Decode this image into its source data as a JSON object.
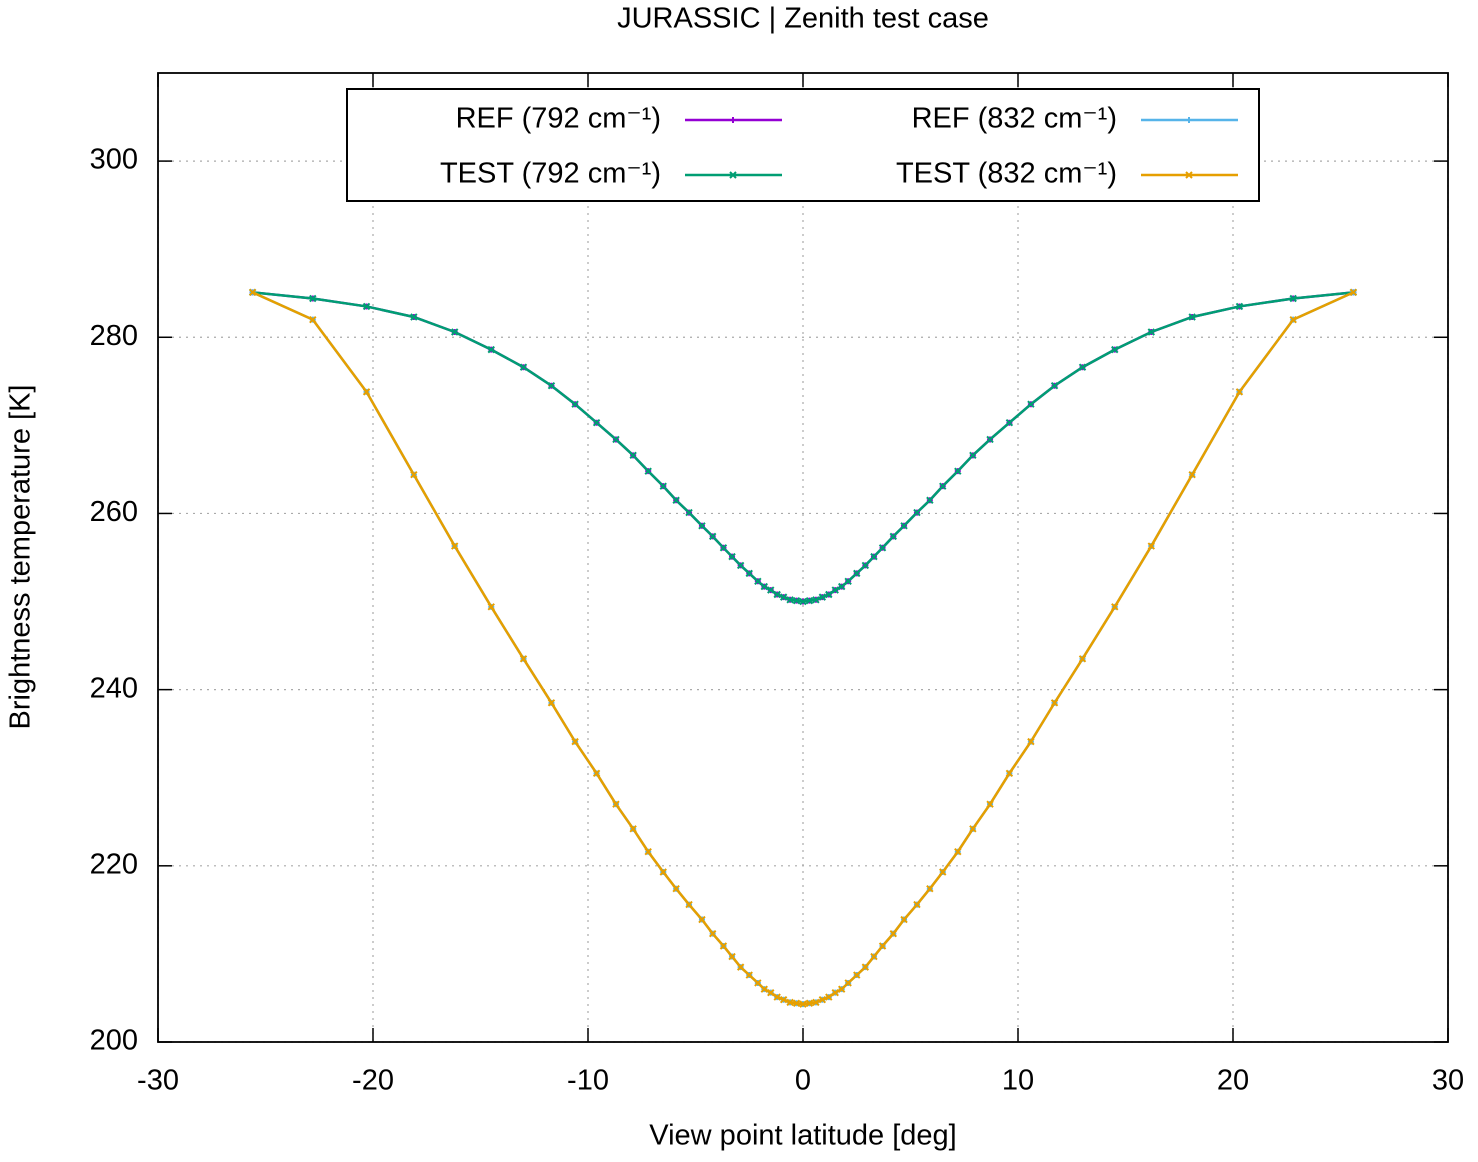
{
  "chart_data": {
    "type": "line",
    "title": "JURASSIC | Zenith test case",
    "x_label": "View point latitude [deg]",
    "y_label": "Brightness temperature [K]",
    "xlim": [
      -30,
      30
    ],
    "xticks": [
      -30,
      -20,
      -10,
      0,
      10,
      20,
      30
    ],
    "ylim": [
      200,
      310
    ],
    "yticks": [
      200,
      220,
      240,
      260,
      280,
      300
    ],
    "grid": true,
    "legend_position": "top",
    "x": [
      -25.6,
      -22.8,
      -20.3,
      -18.1,
      -16.2,
      -14.5,
      -13.0,
      -11.7,
      -10.6,
      -9.6,
      -8.7,
      -7.9,
      -7.2,
      -6.5,
      -5.9,
      -5.3,
      -4.7,
      -4.2,
      -3.7,
      -3.3,
      -2.9,
      -2.5,
      -2.1,
      -1.8,
      -1.5,
      -1.2,
      -0.9,
      -0.6,
      -0.3,
      0,
      0.3,
      0.6,
      0.9,
      1.2,
      1.5,
      1.8,
      2.1,
      2.5,
      2.9,
      3.3,
      3.7,
      4.2,
      4.7,
      5.3,
      5.9,
      6.5,
      7.2,
      7.9,
      8.7,
      9.6,
      10.6,
      11.7,
      13.0,
      14.5,
      16.2,
      18.1,
      20.3,
      22.8,
      25.6
    ],
    "series": [
      {
        "name": "REF (792 cm⁻¹)",
        "color": "#9400d3",
        "marker": "plus",
        "values": [
          285.1,
          284.4,
          283.5,
          282.3,
          280.6,
          278.6,
          276.6,
          274.5,
          272.4,
          270.3,
          268.4,
          266.6,
          264.8,
          263.1,
          261.5,
          260.1,
          258.6,
          257.4,
          256.1,
          255.1,
          254.1,
          253.2,
          252.3,
          251.7,
          251.3,
          250.8,
          250.5,
          250.2,
          250.1,
          250.0,
          250.1,
          250.2,
          250.5,
          250.8,
          251.3,
          251.7,
          252.3,
          253.2,
          254.1,
          255.1,
          256.1,
          257.4,
          258.6,
          260.1,
          261.5,
          263.1,
          264.8,
          266.6,
          268.4,
          270.3,
          272.4,
          274.5,
          276.6,
          278.6,
          280.6,
          282.3,
          283.5,
          284.4,
          285.1
        ]
      },
      {
        "name": "REF (832 cm⁻¹)",
        "color": "#56b4e9",
        "marker": "plus",
        "values": [
          285.1,
          282.0,
          273.8,
          264.4,
          256.3,
          249.4,
          243.5,
          238.5,
          234.1,
          230.5,
          227.0,
          224.2,
          221.6,
          219.3,
          217.4,
          215.6,
          213.9,
          212.3,
          210.9,
          209.7,
          208.5,
          207.6,
          206.7,
          206.0,
          205.6,
          205.1,
          204.8,
          204.5,
          204.4,
          204.3,
          204.4,
          204.5,
          204.8,
          205.1,
          205.6,
          206.0,
          206.7,
          207.6,
          208.5,
          209.7,
          210.9,
          212.3,
          213.9,
          215.6,
          217.4,
          219.3,
          221.6,
          224.2,
          227.0,
          230.5,
          234.1,
          238.5,
          243.5,
          249.4,
          256.3,
          264.4,
          273.8,
          282.0,
          285.1
        ]
      },
      {
        "name": "TEST (792 cm⁻¹)",
        "color": "#009e73",
        "marker": "cross",
        "values": [
          285.1,
          284.4,
          283.5,
          282.3,
          280.6,
          278.6,
          276.6,
          274.5,
          272.4,
          270.3,
          268.4,
          266.6,
          264.8,
          263.1,
          261.5,
          260.1,
          258.6,
          257.4,
          256.1,
          255.1,
          254.1,
          253.2,
          252.3,
          251.7,
          251.3,
          250.8,
          250.5,
          250.2,
          250.1,
          250.0,
          250.1,
          250.2,
          250.5,
          250.8,
          251.3,
          251.7,
          252.3,
          253.2,
          254.1,
          255.1,
          256.1,
          257.4,
          258.6,
          260.1,
          261.5,
          263.1,
          264.8,
          266.6,
          268.4,
          270.3,
          272.4,
          274.5,
          276.6,
          278.6,
          280.6,
          282.3,
          283.5,
          284.4,
          285.1
        ]
      },
      {
        "name": "TEST (832 cm⁻¹)",
        "color": "#e69f00",
        "marker": "cross",
        "values": [
          285.1,
          282.0,
          273.8,
          264.4,
          256.3,
          249.4,
          243.5,
          238.5,
          234.1,
          230.5,
          227.0,
          224.2,
          221.6,
          219.3,
          217.4,
          215.6,
          213.9,
          212.3,
          210.9,
          209.7,
          208.5,
          207.6,
          206.7,
          206.0,
          205.6,
          205.1,
          204.8,
          204.5,
          204.4,
          204.3,
          204.4,
          204.5,
          204.8,
          205.1,
          205.6,
          206.0,
          206.7,
          207.6,
          208.5,
          209.7,
          210.9,
          212.3,
          213.9,
          215.6,
          217.4,
          219.3,
          221.6,
          224.2,
          227.0,
          230.5,
          234.1,
          238.5,
          243.5,
          249.4,
          256.3,
          264.4,
          273.8,
          282.0,
          285.1
        ]
      }
    ]
  }
}
